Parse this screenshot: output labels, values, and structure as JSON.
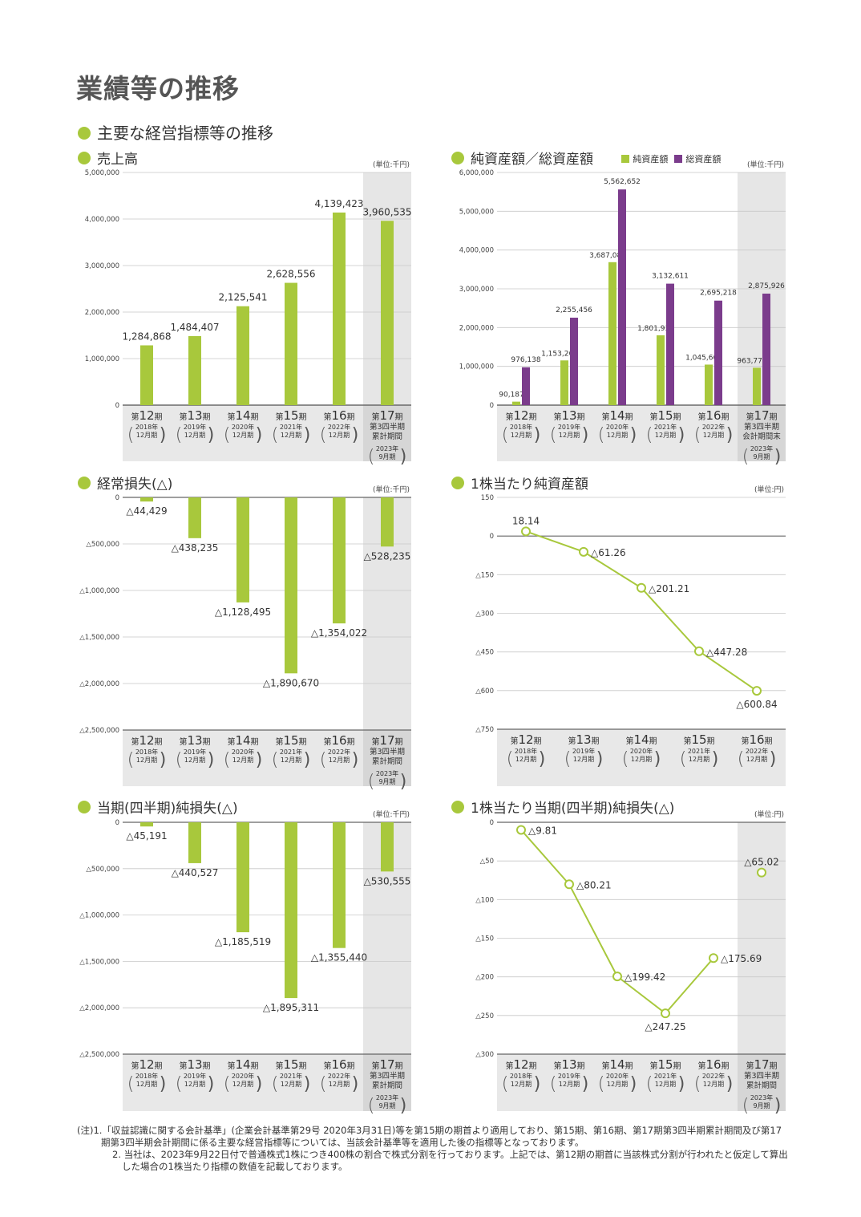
{
  "page": {
    "title": "業績等の推移",
    "subtitle": "主要な経営指標等の推移"
  },
  "colors": {
    "accent": "#a8c83c",
    "purple": "#7b3c8c",
    "grid": "#c8c8c8",
    "band": "#e8e8e8",
    "highlight": "#d6d6d6"
  },
  "periods": [
    {
      "prefix": "第",
      "num": "12",
      "suffix": "期",
      "lines": [],
      "paren": [
        "2018年",
        "12月期"
      ]
    },
    {
      "prefix": "第",
      "num": "13",
      "suffix": "期",
      "lines": [],
      "paren": [
        "2019年",
        "12月期"
      ]
    },
    {
      "prefix": "第",
      "num": "14",
      "suffix": "期",
      "lines": [],
      "paren": [
        "2020年",
        "12月期"
      ]
    },
    {
      "prefix": "第",
      "num": "15",
      "suffix": "期",
      "lines": [],
      "paren": [
        "2021年",
        "12月期"
      ]
    },
    {
      "prefix": "第",
      "num": "16",
      "suffix": "期",
      "lines": [],
      "paren": [
        "2022年",
        "12月期"
      ]
    },
    {
      "prefix": "第",
      "num": "17",
      "suffix": "期",
      "lines": [
        "第3四半期",
        "累計期間"
      ],
      "paren": [
        "2023年",
        "9月期"
      ]
    }
  ],
  "period17_balance": {
    "prefix": "第",
    "num": "17",
    "suffix": "期",
    "lines": [
      "第3四半期",
      "会計期間末"
    ],
    "paren": [
      "2023年",
      "9月期"
    ]
  },
  "chart_data": [
    {
      "type": "bar",
      "title": "売上高",
      "unit": "(単位:千円)",
      "ylim": [
        0,
        5000000
      ],
      "yticks": [
        0,
        1000000,
        2000000,
        3000000,
        4000000,
        5000000
      ],
      "ytick_labels": [
        "0",
        "1,000,000",
        "2,000,000",
        "3,000,000",
        "4,000,000",
        "5,000,000"
      ],
      "categories": [
        "第12期",
        "第13期",
        "第14期",
        "第15期",
        "第16期",
        "第17期"
      ],
      "series": [
        {
          "name": "売上高",
          "values": [
            1284868,
            1484407,
            2125541,
            2628556,
            4139423,
            3960535
          ],
          "labels": [
            "1,284,868",
            "1,484,407",
            "2,125,541",
            "2,628,556",
            "4,139,423",
            "3,960,535"
          ]
        }
      ]
    },
    {
      "type": "bar",
      "title": "純資産額／総資産額",
      "unit": "(単位:千円)",
      "ylim": [
        0,
        6000000
      ],
      "yticks": [
        0,
        1000000,
        2000000,
        3000000,
        4000000,
        5000000,
        6000000
      ],
      "ytick_labels": [
        "0",
        "1,000,000",
        "2,000,000",
        "3,000,000",
        "4,000,000",
        "5,000,000",
        "6,000,000"
      ],
      "categories": [
        "第12期",
        "第13期",
        "第14期",
        "第15期",
        "第16期",
        "第17期"
      ],
      "legend": [
        "純資産額",
        "総資産額"
      ],
      "series": [
        {
          "name": "純資産額",
          "values": [
            90187,
            1153267,
            3687082,
            1801935,
            1045665,
            963770
          ],
          "labels": [
            "90,187",
            "1,153,267",
            "3,687,082",
            "1,801,935",
            "1,045,665",
            "963,770"
          ]
        },
        {
          "name": "総資産額",
          "values": [
            976138,
            2255456,
            5562652,
            3132611,
            2695218,
            2875926
          ],
          "labels": [
            "976,138",
            "2,255,456",
            "5,562,652",
            "3,132,611",
            "2,695,218",
            "2,875,926"
          ]
        }
      ]
    },
    {
      "type": "bar",
      "title": "経常損失(△)",
      "unit": "(単位:千円)",
      "ylim": [
        -2500000,
        0
      ],
      "yticks": [
        0,
        -500000,
        -1000000,
        -1500000,
        -2000000,
        -2500000
      ],
      "ytick_labels": [
        "0",
        "△500,000",
        "△1,000,000",
        "△1,500,000",
        "△2,000,000",
        "△2,500,000"
      ],
      "categories": [
        "第12期",
        "第13期",
        "第14期",
        "第15期",
        "第16期",
        "第17期"
      ],
      "series": [
        {
          "name": "経常損失",
          "values": [
            -44429,
            -438235,
            -1128495,
            -1890670,
            -1354022,
            -528235
          ],
          "labels": [
            "△44,429",
            "△438,235",
            "△1,128,495",
            "△1,890,670",
            "△1,354,022",
            "△528,235"
          ]
        }
      ]
    },
    {
      "type": "line",
      "title": "1株当たり純資産額",
      "unit": "(単位:円)",
      "ylim": [
        -750,
        150
      ],
      "yticks": [
        150,
        0,
        -150,
        -300,
        -450,
        -600,
        -750
      ],
      "ytick_labels": [
        "150",
        "0",
        "△150",
        "△300",
        "△450",
        "△600",
        "△750"
      ],
      "categories": [
        "第12期",
        "第13期",
        "第14期",
        "第15期",
        "第16期"
      ],
      "series": [
        {
          "name": "1株当たり純資産額",
          "values": [
            18.14,
            -61.26,
            -201.21,
            -447.28,
            -600.84
          ],
          "labels": [
            "18.14",
            "△61.26",
            "△201.21",
            "△447.28",
            "△600.84"
          ]
        }
      ]
    },
    {
      "type": "bar",
      "title": "当期(四半期)純損失(△)",
      "unit": "(単位:千円)",
      "ylim": [
        -2500000,
        0
      ],
      "yticks": [
        0,
        -500000,
        -1000000,
        -1500000,
        -2000000,
        -2500000
      ],
      "ytick_labels": [
        "0",
        "△500,000",
        "△1,000,000",
        "△1,500,000",
        "△2,000,000",
        "△2,500,000"
      ],
      "categories": [
        "第12期",
        "第13期",
        "第14期",
        "第15期",
        "第16期",
        "第17期"
      ],
      "series": [
        {
          "name": "当期純損失",
          "values": [
            -45191,
            -440527,
            -1185519,
            -1895311,
            -1355440,
            -530555
          ],
          "labels": [
            "△45,191",
            "△440,527",
            "△1,185,519",
            "△1,895,311",
            "△1,355,440",
            "△530,555"
          ]
        }
      ]
    },
    {
      "type": "line",
      "title": "1株当たり当期(四半期)純損失(△)",
      "unit": "(単位:円)",
      "ylim": [
        -300,
        0
      ],
      "yticks": [
        0,
        -50,
        -100,
        -150,
        -200,
        -250,
        -300
      ],
      "ytick_labels": [
        "0",
        "△50",
        "△100",
        "△150",
        "△200",
        "△250",
        "△300"
      ],
      "categories": [
        "第12期",
        "第13期",
        "第14期",
        "第15期",
        "第16期",
        "第17期"
      ],
      "series": [
        {
          "name": "1株当たり当期純損失",
          "values": [
            -9.81,
            -80.21,
            -199.42,
            -247.25,
            -175.69,
            -65.02
          ],
          "labels": [
            "△9.81",
            "△80.21",
            "△199.42",
            "△247.25",
            "△175.69",
            "△65.02"
          ]
        }
      ]
    }
  ],
  "notes": [
    "(注)1.「収益認識に関する会計基準」(企業会計基準第29号 2020年3月31日)等を第15期の期首より適用しており、第15期、第16期、第17期第3四半期累計期間及び第17期第3四半期会計期間に係る主要な経営指標等については、当該会計基準等を適用した後の指標等となっております。",
    "2. 当社は、2023年9月22日付で普通株式1株につき400株の割合で株式分割を行っております。上記では、第12期の期首に当該株式分割が行われたと仮定して算出した場合の1株当たり指標の数値を記載しております。"
  ]
}
